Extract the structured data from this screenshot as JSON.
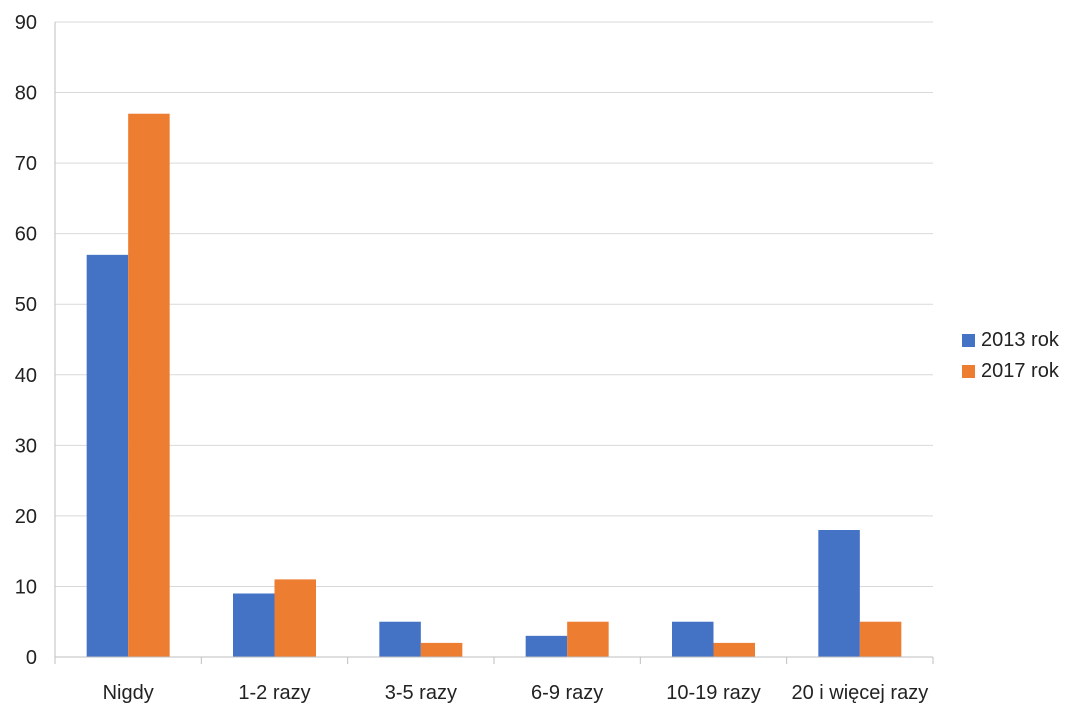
{
  "chart_data": {
    "type": "bar",
    "title": "",
    "xlabel": "",
    "ylabel": "",
    "categories": [
      "Nigdy",
      "1-2 razy",
      "3-5 razy",
      "6-9 razy",
      "10-19 razy",
      "20 i więcej razy"
    ],
    "series": [
      {
        "name": "2013 rok",
        "values": [
          57,
          9,
          5,
          3,
          5,
          18
        ],
        "color": "#4472C4"
      },
      {
        "name": "2017 rok",
        "values": [
          77,
          11,
          2,
          5,
          2,
          5
        ],
        "color": "#ED7D31"
      }
    ],
    "ylim": [
      0,
      90
    ],
    "yticks": [
      0,
      10,
      20,
      30,
      40,
      50,
      60,
      70,
      80,
      90
    ],
    "grid": true,
    "legend_position": "right"
  }
}
